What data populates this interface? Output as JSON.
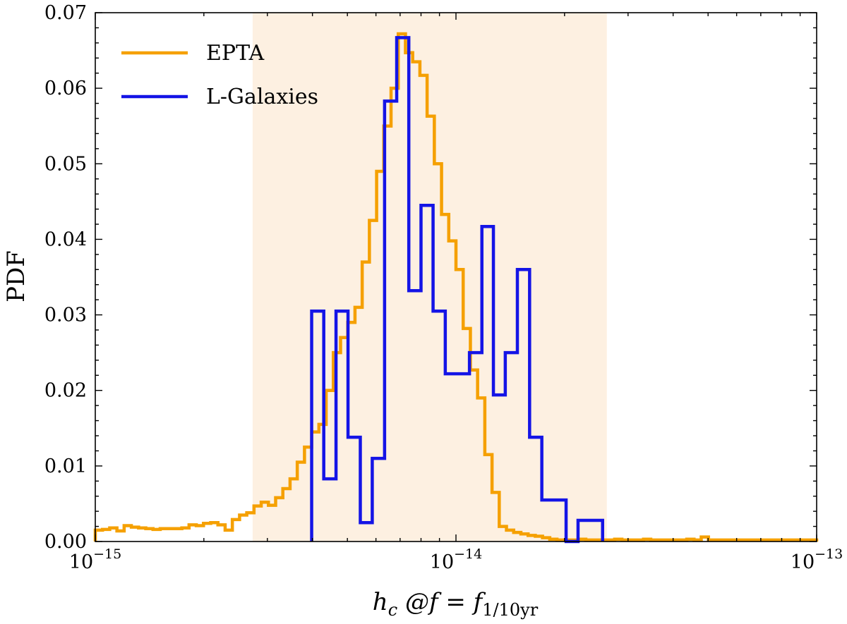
{
  "chart_data": {
    "type": "step-histogram",
    "title": "",
    "xscale": "log",
    "xlim": [
      1e-15,
      1e-13
    ],
    "ylim": [
      0,
      0.07
    ],
    "ylabel": "PDF",
    "xlabel": {
      "main": "h",
      "sub": "c",
      "mid": " @f = f",
      "sub2": "1/10yr"
    },
    "yticks": [
      {
        "value": 0.0,
        "label": "0.00"
      },
      {
        "value": 0.01,
        "label": "0.01"
      },
      {
        "value": 0.02,
        "label": "0.02"
      },
      {
        "value": 0.03,
        "label": "0.03"
      },
      {
        "value": 0.04,
        "label": "0.04"
      },
      {
        "value": 0.05,
        "label": "0.05"
      },
      {
        "value": 0.06,
        "label": "0.06"
      },
      {
        "value": 0.07,
        "label": "0.07"
      }
    ],
    "xticks": [
      {
        "value": 1e-15,
        "base": "10",
        "exp": "−15"
      },
      {
        "value": 1e-14,
        "base": "10",
        "exp": "−14"
      },
      {
        "value": 1e-13,
        "base": "10",
        "exp": "−13"
      }
    ],
    "shaded_region": {
      "x0": 2.73e-15,
      "x1": 2.62e-14,
      "color": "#fdf0e1"
    },
    "legend": {
      "position": "top-left"
    },
    "series": [
      {
        "name": "EPTA",
        "color": "#f5a000",
        "log_bin_width": 0.02,
        "log_start": -15.0,
        "values": [
          0.0015,
          0.0016,
          0.0018,
          0.0014,
          0.0021,
          0.0019,
          0.0018,
          0.0017,
          0.0016,
          0.0017,
          0.0017,
          0.0017,
          0.0018,
          0.0022,
          0.0021,
          0.0024,
          0.0025,
          0.0022,
          0.0015,
          0.0029,
          0.0035,
          0.0038,
          0.0047,
          0.0052,
          0.0048,
          0.0058,
          0.007,
          0.0083,
          0.0105,
          0.0125,
          0.0145,
          0.0155,
          0.02,
          0.025,
          0.027,
          0.029,
          0.031,
          0.037,
          0.0425,
          0.049,
          0.055,
          0.06,
          0.0672,
          0.0647,
          0.0635,
          0.0617,
          0.0563,
          0.05,
          0.0433,
          0.0398,
          0.036,
          0.0282,
          0.0227,
          0.019,
          0.0115,
          0.0065,
          0.002,
          0.0015,
          0.0012,
          0.001,
          0.0008,
          0.0007,
          0.0005,
          0.0003,
          0.0002,
          0.0002,
          0.0002,
          0.0003,
          0.0002,
          0.0002,
          0.0002,
          0.0002,
          0.0003,
          0.0002,
          0.0002,
          0.0002,
          0.0003,
          0.0002,
          0.0002,
          0.0002,
          0.0002,
          0.0002,
          0.0003,
          0.0002,
          0.0006,
          0.0002,
          0.0002,
          0.0002,
          0.0002,
          0.0002,
          0.0002,
          0.0002,
          0.0002,
          0.0002,
          0.0002,
          0.0002,
          0.0002,
          0.0002,
          0.0002,
          0.0002
        ]
      },
      {
        "name": "L-Galaxies",
        "color": "#1414e6",
        "bin_edges": [
          3.98e-15,
          4.3e-15,
          4.65e-15,
          5.02e-15,
          5.43e-15,
          5.86e-15,
          6.34e-15,
          6.85e-15,
          7.4e-15,
          8e-15,
          8.64e-15,
          9.34e-15,
          1.01e-14,
          1.09e-14,
          1.18e-14,
          1.27e-14,
          1.37e-14,
          1.48e-14,
          1.6e-14,
          1.73e-14,
          1.87e-14,
          2.02e-14,
          2.18e-14,
          2.36e-14,
          2.55e-14
        ],
        "values": [
          0.0305,
          0.0083,
          0.0305,
          0.0138,
          0.0025,
          0.011,
          0.0583,
          0.0667,
          0.0332,
          0.0445,
          0.0305,
          0.0222,
          0.0222,
          0.025,
          0.0417,
          0.0194,
          0.025,
          0.036,
          0.0138,
          0.0055,
          0.0055,
          0.0,
          0.0028,
          0.0028
        ]
      }
    ]
  }
}
